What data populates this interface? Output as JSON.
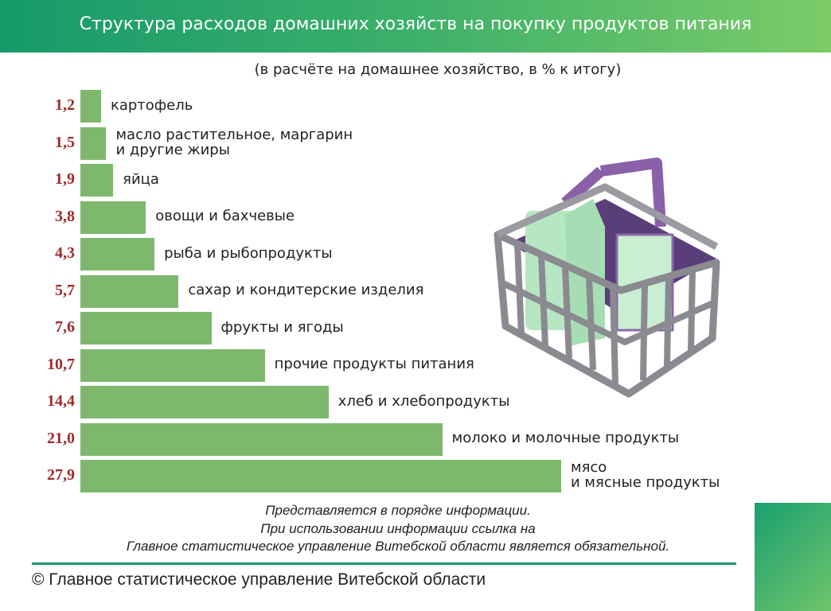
{
  "chart_data": {
    "type": "bar",
    "orientation": "horizontal",
    "title": "Структура расходов домашних хозяйств на покупку продуктов питания",
    "subtitle": "(в расчёте на домашнее хозяйство, в % к итогу)",
    "categories": [
      "картофель",
      "масло растительное, маргарин\nи другие жиры",
      "яйца",
      "овощи и бахчевые",
      "рыба и рыбопродукты",
      "сахар и кондитерские изделия",
      "фрукты и ягоды",
      "прочие продукты питания",
      "хлеб и хлебопродукты",
      "молоко и молочные продукты",
      "мясо\nи мясные продукты"
    ],
    "values": [
      1.2,
      1.5,
      1.9,
      3.8,
      4.3,
      5.7,
      7.6,
      10.7,
      14.4,
      21.0,
      27.9
    ],
    "value_labels": [
      "1,2",
      "1,5",
      "1,9",
      "3,8",
      "4,3",
      "5,7",
      "7,6",
      "10,7",
      "14,4",
      "21,0",
      "27,9"
    ],
    "color": "#7db86c",
    "notes": [
      "Представляется в порядке информации.",
      "При использовании информации ссылка на",
      "Главное статистическое управление Витебской области является обязательной."
    ],
    "source": "© Главное статистическое управление Витебской области"
  }
}
